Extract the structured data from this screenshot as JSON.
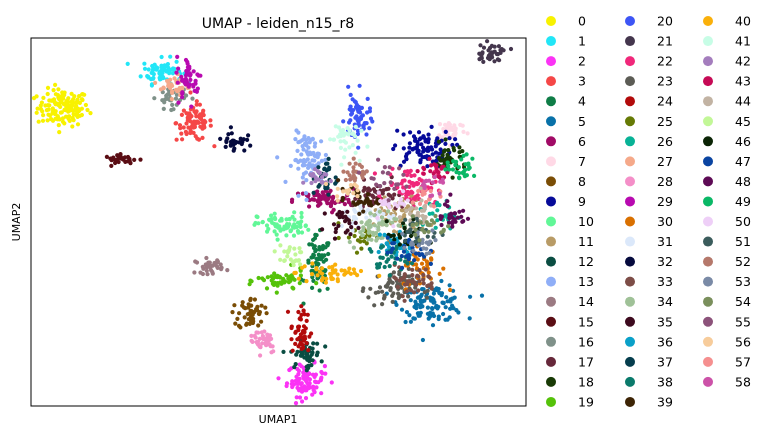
{
  "chart_data": {
    "type": "scatter",
    "title": "UMAP - leiden_n15_r8",
    "xlabel": "UMAP1",
    "ylabel": "UMAP2",
    "grid": false,
    "ticks": false,
    "legend_placement": "right, outside plot, 3 columns",
    "xlim": [
      0,
      100
    ],
    "ylim": [
      0,
      100
    ],
    "clusters": [
      {
        "label": "0",
        "color": "#f8f200",
        "center": [
          6.5,
          81
        ],
        "spread": [
          2.6,
          2.5
        ],
        "n": 140
      },
      {
        "label": "1",
        "color": "#22e6f7",
        "center": [
          26.5,
          91
        ],
        "spread": [
          2.0,
          1.7
        ],
        "n": 70
      },
      {
        "label": "2",
        "color": "#fb33f5",
        "center": [
          55.5,
          7
        ],
        "spread": [
          1.9,
          2.2
        ],
        "n": 90
      },
      {
        "label": "3",
        "color": "#f54747",
        "center": [
          33.0,
          77
        ],
        "spread": [
          1.8,
          2.5
        ],
        "n": 80
      },
      {
        "label": "4",
        "color": "#0f7d47",
        "center": [
          58.0,
          38
        ],
        "spread": [
          1.3,
          4.0
        ],
        "n": 70
      },
      {
        "label": "5",
        "color": "#0871a8",
        "center": [
          81.0,
          28
        ],
        "spread": [
          3.2,
          2.5
        ],
        "n": 110
      },
      {
        "label": "6",
        "color": "#a10a66",
        "center": [
          59.0,
          56
        ],
        "spread": [
          3.0,
          1.5
        ],
        "n": 70
      },
      {
        "label": "7",
        "color": "#ffd9e6",
        "center": [
          85.0,
          75
        ],
        "spread": [
          1.5,
          1.5
        ],
        "n": 40
      },
      {
        "label": "8",
        "color": "#7a4d05",
        "center": [
          44.5,
          25
        ],
        "spread": [
          1.3,
          2.2
        ],
        "n": 50
      },
      {
        "label": "9",
        "color": "#060a99",
        "center": [
          79.0,
          70
        ],
        "spread": [
          3.0,
          2.5
        ],
        "n": 90
      },
      {
        "label": "10",
        "color": "#61f797",
        "center": [
          51.0,
          49
        ],
        "spread": [
          2.6,
          1.7
        ],
        "n": 70
      },
      {
        "label": "11",
        "color": "#b89b66",
        "center": [
          74.0,
          52
        ],
        "spread": [
          3.0,
          3.0
        ],
        "n": 70
      },
      {
        "label": "12",
        "color": "#0a4d42",
        "center": [
          55.5,
          14
        ],
        "spread": [
          1.5,
          1.8
        ],
        "n": 50
      },
      {
        "label": "13",
        "color": "#8faef7",
        "center": [
          56.5,
          67
        ],
        "spread": [
          1.8,
          3.5
        ],
        "n": 80
      },
      {
        "label": "14",
        "color": "#9b7a82",
        "center": [
          36.0,
          38
        ],
        "spread": [
          1.4,
          1.0
        ],
        "n": 35
      },
      {
        "label": "15",
        "color": "#5a0d14",
        "center": [
          18.5,
          67
        ],
        "spread": [
          1.8,
          0.6
        ],
        "n": 28
      },
      {
        "label": "16",
        "color": "#7f9189",
        "center": [
          28.5,
          84
        ],
        "spread": [
          1.5,
          1.5
        ],
        "n": 40
      },
      {
        "label": "17",
        "color": "#66283a",
        "center": [
          70.0,
          57
        ],
        "spread": [
          2.5,
          2.0
        ],
        "n": 50
      },
      {
        "label": "18",
        "color": "#183a05",
        "center": [
          84.5,
          67
        ],
        "spread": [
          1.8,
          2.0
        ],
        "n": 40
      },
      {
        "label": "19",
        "color": "#55c20a",
        "center": [
          50.5,
          34
        ],
        "spread": [
          2.4,
          1.5
        ],
        "n": 50
      },
      {
        "label": "20",
        "color": "#3d55f5",
        "center": [
          66.0,
          78
        ],
        "spread": [
          1.3,
          3.5
        ],
        "n": 60
      },
      {
        "label": "21",
        "color": "#44364d",
        "center": [
          93.0,
          96
        ],
        "spread": [
          1.8,
          1.2
        ],
        "n": 35
      },
      {
        "label": "22",
        "color": "#f0287a",
        "center": [
          77.0,
          60
        ],
        "spread": [
          2.5,
          2.5
        ],
        "n": 70
      },
      {
        "label": "23",
        "color": "#5c5c55",
        "center": [
          73.0,
          32
        ],
        "spread": [
          2.5,
          2.5
        ],
        "n": 70
      },
      {
        "label": "24",
        "color": "#b20a0a",
        "center": [
          54.5,
          20
        ],
        "spread": [
          1.0,
          3.5
        ],
        "n": 45
      },
      {
        "label": "25",
        "color": "#667a05",
        "center": [
          67.0,
          46
        ],
        "spread": [
          2.0,
          2.0
        ],
        "n": 20
      },
      {
        "label": "26",
        "color": "#08b296",
        "center": [
          82.0,
          52
        ],
        "spread": [
          2.0,
          2.0
        ],
        "n": 30
      },
      {
        "label": "27",
        "color": "#f5a98a",
        "center": [
          29.0,
          87
        ],
        "spread": [
          1.5,
          1.5
        ],
        "n": 35
      },
      {
        "label": "28",
        "color": "#f48fc8",
        "center": [
          47.0,
          18
        ],
        "spread": [
          1.4,
          1.8
        ],
        "n": 40
      },
      {
        "label": "29",
        "color": "#b80ab0",
        "center": [
          32.0,
          89
        ],
        "spread": [
          1.3,
          3.0
        ],
        "n": 45
      },
      {
        "label": "30",
        "color": "#d97000",
        "center": [
          79.0,
          38
        ],
        "spread": [
          2.0,
          3.0
        ],
        "n": 40
      },
      {
        "label": "31",
        "color": "#dbe8fa",
        "center": [
          68.0,
          52
        ],
        "spread": [
          3.0,
          2.0
        ],
        "n": 40
      },
      {
        "label": "32",
        "color": "#050a3d",
        "center": [
          41.0,
          72
        ],
        "spread": [
          1.2,
          1.5
        ],
        "n": 30
      },
      {
        "label": "33",
        "color": "#7d4d47",
        "center": [
          77.0,
          34
        ],
        "spread": [
          2.5,
          2.0
        ],
        "n": 40
      },
      {
        "label": "34",
        "color": "#9fc197",
        "center": [
          69.0,
          49
        ],
        "spread": [
          2.5,
          2.5
        ],
        "n": 50
      },
      {
        "label": "35",
        "color": "#3d0a1e",
        "center": [
          63.0,
          50
        ],
        "spread": [
          1.5,
          1.5
        ],
        "n": 25
      },
      {
        "label": "36",
        "color": "#0aa0c8",
        "center": [
          74.0,
          44
        ],
        "spread": [
          2.0,
          2.0
        ],
        "n": 40
      },
      {
        "label": "37",
        "color": "#053d4d",
        "center": [
          59.5,
          62
        ],
        "spread": [
          1.2,
          2.5
        ],
        "n": 30
      },
      {
        "label": "38",
        "color": "#0a7a6b",
        "center": [
          72.0,
          40
        ],
        "spread": [
          2.0,
          2.0
        ],
        "n": 30
      },
      {
        "label": "39",
        "color": "#3d2405",
        "center": [
          66.0,
          56
        ],
        "spread": [
          2.0,
          1.5
        ],
        "n": 30
      },
      {
        "label": "40",
        "color": "#fab00a",
        "center": [
          60.5,
          36
        ],
        "spread": [
          3.5,
          1.5
        ],
        "n": 45
      },
      {
        "label": "41",
        "color": "#c7fde6",
        "center": [
          63.0,
          73
        ],
        "spread": [
          1.5,
          2.5
        ],
        "n": 35
      },
      {
        "label": "42",
        "color": "#a47dbd",
        "center": [
          58.0,
          62
        ],
        "spread": [
          1.5,
          1.5
        ],
        "n": 20
      },
      {
        "label": "43",
        "color": "#c60a55",
        "center": [
          81.5,
          64
        ],
        "spread": [
          1.5,
          1.5
        ],
        "n": 25
      },
      {
        "label": "44",
        "color": "#c2b3a3",
        "center": [
          78.0,
          52
        ],
        "spread": [
          2.0,
          2.0
        ],
        "n": 30
      },
      {
        "label": "45",
        "color": "#c2f797",
        "center": [
          52.0,
          41
        ],
        "spread": [
          1.5,
          1.5
        ],
        "n": 25
      },
      {
        "label": "46",
        "color": "#0a2405",
        "center": [
          76.0,
          46
        ],
        "spread": [
          2.0,
          2.0
        ],
        "n": 30
      },
      {
        "label": "47",
        "color": "#0a44a1",
        "center": [
          76.0,
          42
        ],
        "spread": [
          2.0,
          2.0
        ],
        "n": 30
      },
      {
        "label": "48",
        "color": "#5d0a55",
        "center": [
          85.0,
          52
        ],
        "spread": [
          1.5,
          2.5
        ],
        "n": 30
      },
      {
        "label": "49",
        "color": "#0ab866",
        "center": [
          87.0,
          65
        ],
        "spread": [
          1.5,
          1.5
        ],
        "n": 30
      },
      {
        "label": "50",
        "color": "#eecff7",
        "center": [
          73.0,
          55
        ],
        "spread": [
          2.0,
          2.0
        ],
        "n": 20
      },
      {
        "label": "51",
        "color": "#3b5c5c",
        "center": [
          78.0,
          47
        ],
        "spread": [
          2.0,
          2.0
        ],
        "n": 25
      },
      {
        "label": "52",
        "color": "#b5786b",
        "center": [
          66.0,
          64
        ],
        "spread": [
          1.5,
          1.5
        ],
        "n": 25
      },
      {
        "label": "53",
        "color": "#7a8aa6",
        "center": [
          79.0,
          44
        ],
        "spread": [
          2.0,
          2.0
        ],
        "n": 20
      },
      {
        "label": "54",
        "color": "#7a8f5c",
        "center": [
          80.0,
          49
        ],
        "spread": [
          2.0,
          2.0
        ],
        "n": 20
      },
      {
        "label": "55",
        "color": "#8c527a",
        "center": [
          71.0,
          62
        ],
        "spread": [
          2.0,
          2.0
        ],
        "n": 20
      },
      {
        "label": "56",
        "color": "#f7cc9b",
        "center": [
          64.0,
          59
        ],
        "spread": [
          1.5,
          1.5
        ],
        "n": 15
      },
      {
        "label": "57",
        "color": "#f58f8f",
        "center": [
          79.0,
          57
        ],
        "spread": [
          1.5,
          1.5
        ],
        "n": 15
      },
      {
        "label": "58",
        "color": "#cc52a8",
        "center": [
          81.0,
          60
        ],
        "spread": [
          1.5,
          1.5
        ],
        "n": 15
      }
    ]
  }
}
